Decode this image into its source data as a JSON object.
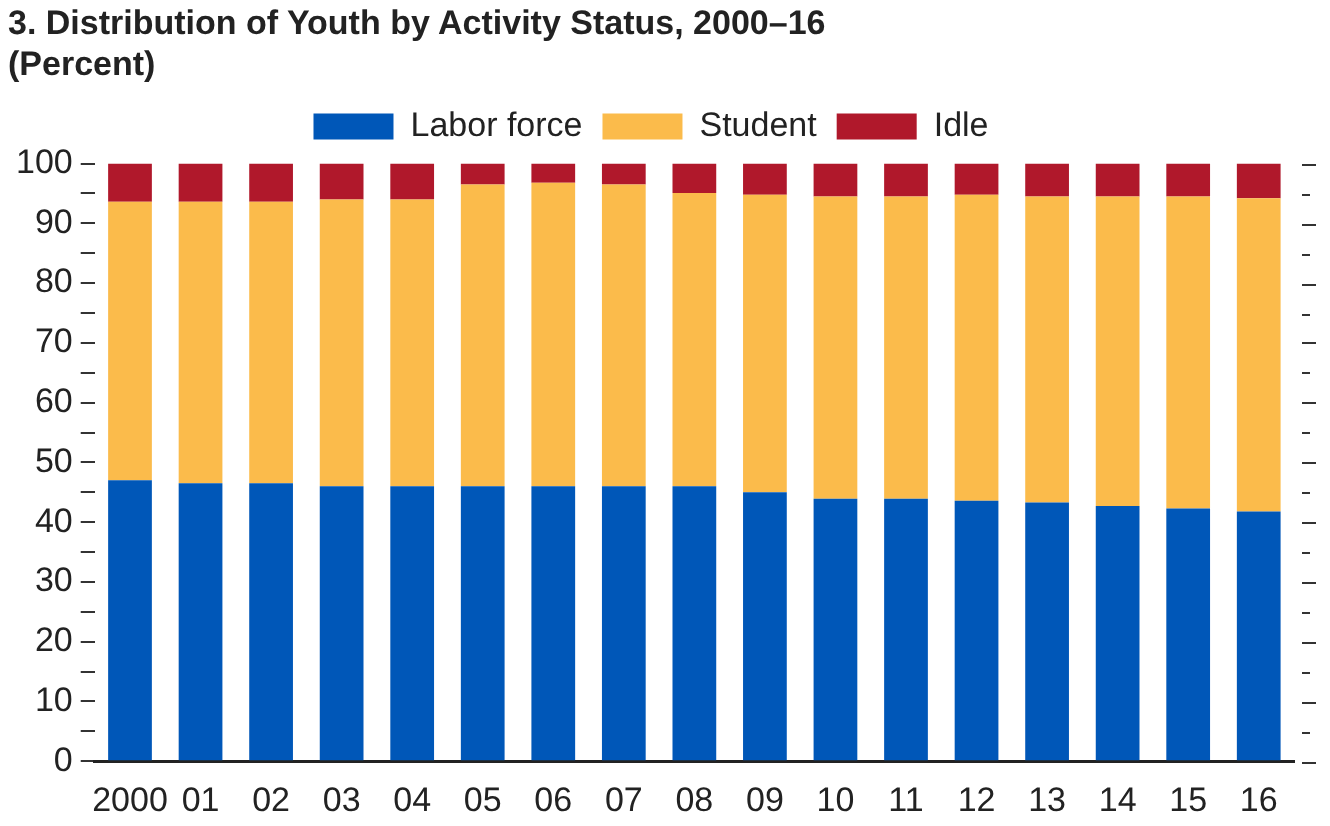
{
  "chart_data": {
    "type": "bar",
    "title": "3. Distribution of Youth by Activity Status, 2000–16",
    "subtitle": "(Percent)",
    "categories": [
      "2000",
      "01",
      "02",
      "03",
      "04",
      "05",
      "06",
      "07",
      "08",
      "09",
      "10",
      "11",
      "12",
      "13",
      "14",
      "15",
      "16"
    ],
    "stacked": true,
    "legend": "top",
    "grid": false,
    "ylim": [
      0,
      100
    ],
    "yticks": [
      0,
      {
        "value": 5,
        "label": null
      },
      10,
      {
        "value": 15,
        "label": null
      },
      20,
      {
        "value": 25,
        "label": null
      },
      30,
      {
        "value": 35,
        "label": null
      },
      40,
      {
        "value": 45,
        "label": null
      },
      50,
      {
        "value": 55,
        "label": null
      },
      60,
      {
        "value": 65,
        "label": null
      },
      70,
      {
        "value": 75,
        "label": null
      },
      80,
      {
        "value": 85,
        "label": null
      },
      90,
      {
        "value": 95,
        "label": null
      },
      100
    ],
    "series": [
      {
        "name": "Labor force",
        "color": "#0057b8",
        "values": [
          47,
          46.5,
          46.5,
          46,
          46,
          46,
          46,
          46,
          46,
          45,
          43.9,
          43.9,
          43.6,
          43.3,
          42.7,
          42.3,
          41.8
        ]
      },
      {
        "name": "Student",
        "color": "#fbbb4b",
        "values": [
          46.6,
          47.1,
          47.1,
          48,
          48,
          50.5,
          50.8,
          50.5,
          49.1,
          49.8,
          50.6,
          50.6,
          51.2,
          51.2,
          51.8,
          52.2,
          52.4
        ]
      },
      {
        "name": "Idle",
        "color": "#b0182b",
        "values": [
          6.4,
          6.4,
          6.4,
          6,
          6,
          3.5,
          3.2,
          3.5,
          4.9,
          5.2,
          5.5,
          5.5,
          5.2,
          5.5,
          5.5,
          5.5,
          5.8
        ]
      }
    ]
  }
}
